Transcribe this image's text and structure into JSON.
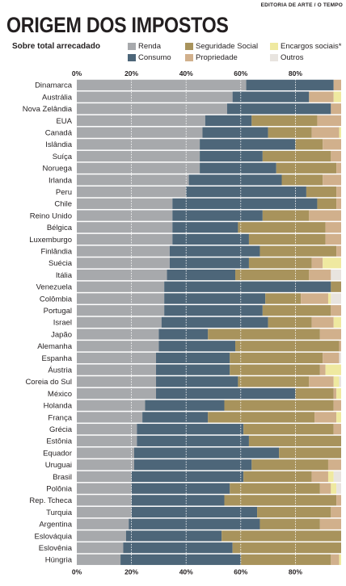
{
  "header": {
    "credit": "EDITORIA DE ARTE / O TEMPO",
    "title": "ORIGEM DOS IMPOSTOS",
    "subtitle": "Sobre total arrecadado"
  },
  "colors": {
    "renda": "#a7a9ac",
    "consumo": "#4d6679",
    "seguridade": "#a8935c",
    "propriedade": "#d1b08c",
    "encargos": "#efe9a0",
    "outros": "#e8e4df",
    "gridline": "#ffffff",
    "text": "#231f20"
  },
  "chart_data": {
    "type": "bar",
    "orientation": "horizontal",
    "stacked": true,
    "unit": "%",
    "xlim": [
      0,
      100
    ],
    "xticks": [
      "0%",
      "20%",
      "40%",
      "60%",
      "80%"
    ],
    "grid": true,
    "legend_position": "top-right",
    "categories": [
      "Dinamarca",
      "Austrália",
      "Nova Zelândia",
      "EUA",
      "Canadá",
      "Islândia",
      "Suíça",
      "Noruega",
      "Irlanda",
      "Peru",
      "Chile",
      "Reino Unido",
      "Bélgica",
      "Luxemburgo",
      "Finlândia",
      "Suécia",
      "Itália",
      "Venezuela",
      "Colômbia",
      "Portugal",
      "Israel",
      "Japão",
      "Alemanha",
      "Espanha",
      "Áustria",
      "Coreia do Sul",
      "México",
      "Holanda",
      "França",
      "Grécia",
      "Estônia",
      "Equador",
      "Uruguai",
      "Brasil",
      "Polônia",
      "Rep. Tcheca",
      "Turquia",
      "Argentina",
      "Eslováquia",
      "Eslovênia",
      "Húngria"
    ],
    "series": [
      {
        "name": "Renda",
        "key": "renda",
        "values": [
          62,
          57,
          55,
          47,
          46,
          45,
          45,
          45,
          41,
          40,
          35,
          35,
          35,
          35,
          34,
          34,
          33,
          32,
          32,
          32,
          31,
          30,
          30,
          29,
          29,
          29,
          29,
          25,
          24,
          22,
          22,
          21,
          21,
          20,
          20,
          20,
          20,
          19,
          18,
          17,
          16
        ]
      },
      {
        "name": "Consumo",
        "key": "consumo",
        "values": [
          32,
          28,
          38,
          17,
          24,
          35,
          23,
          28,
          34,
          44,
          53,
          33,
          24,
          28,
          33,
          29,
          25,
          61,
          37,
          36,
          39,
          18,
          28,
          27,
          27,
          30,
          51,
          29,
          24,
          39,
          41,
          53,
          43,
          41,
          36,
          34,
          46,
          48,
          35,
          40,
          44
        ]
      },
      {
        "name": "Seguridade Social",
        "key": "seguridade",
        "values": [
          0,
          0,
          0,
          24,
          16,
          10,
          25,
          22,
          15,
          11,
          7,
          17,
          32,
          28,
          28,
          23,
          27,
          5,
          13,
          25,
          16,
          41,
          38,
          34,
          33,
          26,
          14,
          40,
          39,
          33,
          34,
          26,
          28,
          25,
          33,
          41,
          27,
          22,
          44,
          40,
          33
        ]
      },
      {
        "name": "Propriedade",
        "key": "propriedade",
        "values": [
          4,
          9,
          6,
          11,
          10,
          8,
          5,
          4,
          8,
          2,
          4,
          12,
          8,
          8,
          4,
          4,
          8,
          0,
          10,
          4,
          8,
          8,
          4,
          6,
          2,
          9,
          1,
          3,
          8,
          4,
          2,
          0,
          6,
          6,
          4,
          2,
          5,
          8,
          1,
          2,
          3
        ]
      },
      {
        "name": "Encargos sociais*",
        "key": "encargos",
        "values": [
          1,
          5,
          0,
          0,
          2,
          0,
          0,
          0,
          0,
          0,
          0,
          0,
          0,
          0,
          0,
          10,
          0,
          0,
          1,
          0,
          4,
          0,
          0,
          0,
          6,
          2,
          3,
          0,
          3,
          0,
          0,
          0,
          0,
          2,
          2,
          0,
          0,
          0,
          0,
          0,
          1
        ]
      },
      {
        "name": "Outros",
        "key": "outros",
        "values": [
          1,
          1,
          1,
          1,
          2,
          2,
          2,
          1,
          2,
          3,
          1,
          3,
          1,
          1,
          1,
          0,
          7,
          2,
          7,
          3,
          2,
          3,
          0,
          4,
          3,
          4,
          2,
          3,
          2,
          2,
          1,
          0,
          2,
          6,
          5,
          3,
          2,
          3,
          2,
          1,
          3
        ]
      }
    ]
  }
}
